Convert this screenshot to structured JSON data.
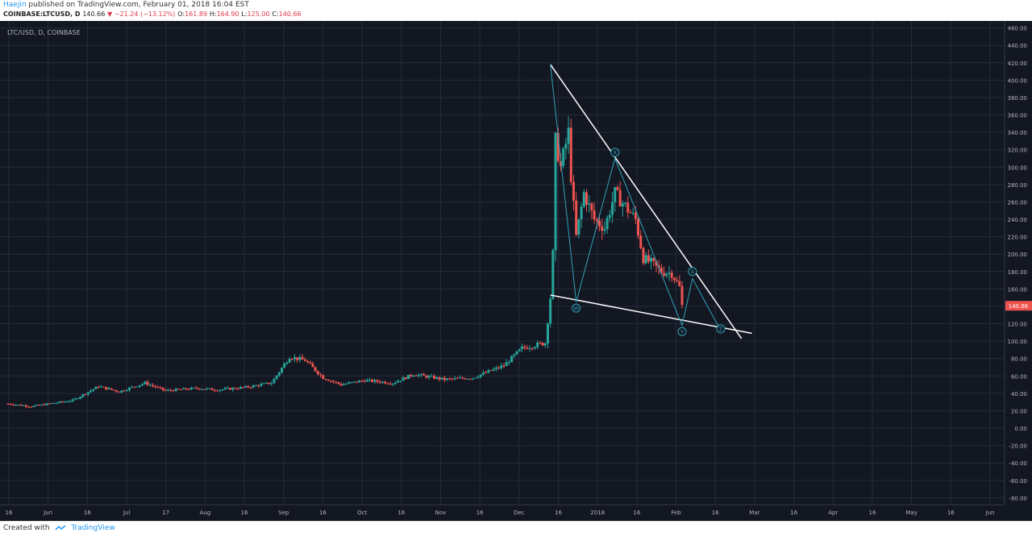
{
  "header": {
    "author": "Haejin",
    "published_text": "published on TradingView.com, February 01, 2018 16:04 EST",
    "symbol": "COINBASE:LTCUSD, D",
    "last": "140.66",
    "change": "▼ −21.24 (−13.12%)",
    "open_label": "O:",
    "open": "161.89",
    "high_label": "H:",
    "high": "164.90",
    "low_label": "L:",
    "low": "125.00",
    "close_label": "C:",
    "close": "140.66"
  },
  "footer": {
    "created_with": "Created with",
    "brand": "TradingView"
  },
  "colors": {
    "background": "#131722",
    "grid": "#262b3b",
    "axis_text": "#b2b5be",
    "up": "#26a69a",
    "down": "#ef5350",
    "pattern": "#2ea3b8",
    "trendline": "#ffffff",
    "price_label": "#ef5350"
  },
  "chart_data": {
    "type": "candlestick",
    "title": "LTC/USD, D, COINBASE",
    "x_labels": [
      "16",
      "Jun",
      "16",
      "Jul",
      "17",
      "Aug",
      "16",
      "Sep",
      "16",
      "Oct",
      "16",
      "Nov",
      "16",
      "Dec",
      "16",
      "2018",
      "16",
      "Feb",
      "16",
      "Mar",
      "16",
      "Apr",
      "16",
      "May",
      "16",
      "Jun"
    ],
    "y_ticks": [
      460,
      440,
      420,
      400,
      380,
      360,
      340,
      320,
      300,
      280,
      260,
      240,
      220,
      200,
      180,
      160,
      140,
      120,
      100,
      80,
      60,
      40,
      20,
      0,
      -20,
      -40,
      -60,
      -80
    ],
    "ylim": [
      -88,
      468
    ],
    "y_tick_labels": [
      "460.00",
      "440.00",
      "420.00",
      "400.00",
      "380.00",
      "360.00",
      "340.00",
      "320.00",
      "300.00",
      "280.00",
      "260.00",
      "240.00",
      "220.00",
      "200.00",
      "180.00",
      "160.00",
      "140.00",
      "120.00",
      "100.00",
      "80.00",
      "60.00",
      "40.00",
      "20.00",
      "0.00",
      "-20.00",
      "-40.00",
      "-60.00",
      "-80.00"
    ],
    "last_price_label": "140.66",
    "price_path": [
      [
        "2017-05-16",
        28
      ],
      [
        "2017-05-25",
        25
      ],
      [
        "2017-06-10",
        32
      ],
      [
        "2017-06-20",
        48
      ],
      [
        "2017-06-28",
        42
      ],
      [
        "2017-07-08",
        52
      ],
      [
        "2017-07-16",
        43
      ],
      [
        "2017-07-28",
        46
      ],
      [
        "2017-08-05",
        44
      ],
      [
        "2017-08-16",
        47
      ],
      [
        "2017-08-26",
        52
      ],
      [
        "2017-09-02",
        82
      ],
      [
        "2017-09-08",
        78
      ],
      [
        "2017-09-15",
        58
      ],
      [
        "2017-09-22",
        50
      ],
      [
        "2017-10-01",
        55
      ],
      [
        "2017-10-12",
        52
      ],
      [
        "2017-10-20",
        62
      ],
      [
        "2017-11-01",
        56
      ],
      [
        "2017-11-12",
        58
      ],
      [
        "2017-11-24",
        72
      ],
      [
        "2017-12-01",
        92
      ],
      [
        "2017-12-10",
        98
      ],
      [
        "2017-12-12",
        150
      ],
      [
        "2017-12-13",
        200
      ],
      [
        "2017-12-14",
        330
      ],
      [
        "2017-12-16",
        300
      ],
      [
        "2017-12-19",
        340
      ],
      [
        "2017-12-20",
        290
      ],
      [
        "2017-12-22",
        220
      ],
      [
        "2017-12-25",
        270
      ],
      [
        "2017-12-29",
        240
      ],
      [
        "2018-01-02",
        230
      ],
      [
        "2018-01-06",
        270
      ],
      [
        "2018-01-10",
        255
      ],
      [
        "2018-01-14",
        240
      ],
      [
        "2018-01-17",
        195
      ],
      [
        "2018-01-20",
        190
      ],
      [
        "2018-01-24",
        180
      ],
      [
        "2018-01-28",
        178
      ],
      [
        "2018-01-31",
        162
      ],
      [
        "2018-02-01",
        140.66
      ]
    ],
    "annotations": {
      "triangle_lines": [
        {
          "from": [
            "2017-12-12",
            418
          ],
          "to": [
            "2018-02-24",
            103
          ]
        },
        {
          "from": [
            "2017-12-12",
            153
          ],
          "to": [
            "2018-02-28",
            109
          ]
        }
      ],
      "wxyxz_path": [
        [
          "2017-12-12",
          418
        ],
        [
          "2017-12-22",
          145
        ],
        [
          "2018-01-06",
          310
        ],
        [
          "2018-02-01",
          118
        ],
        [
          "2018-02-05",
          172
        ],
        [
          "2018-02-16",
          112
        ]
      ],
      "wave_labels": [
        {
          "text": "W",
          "x": "2017-12-22",
          "y": 138
        },
        {
          "text": "X",
          "x": "2018-01-06",
          "y": 317
        },
        {
          "text": "Y",
          "x": "2018-02-01",
          "y": 111
        },
        {
          "text": "X",
          "x": "2018-02-05",
          "y": 180
        },
        {
          "text": "Z",
          "x": "2018-02-16",
          "y": 114
        }
      ]
    }
  }
}
